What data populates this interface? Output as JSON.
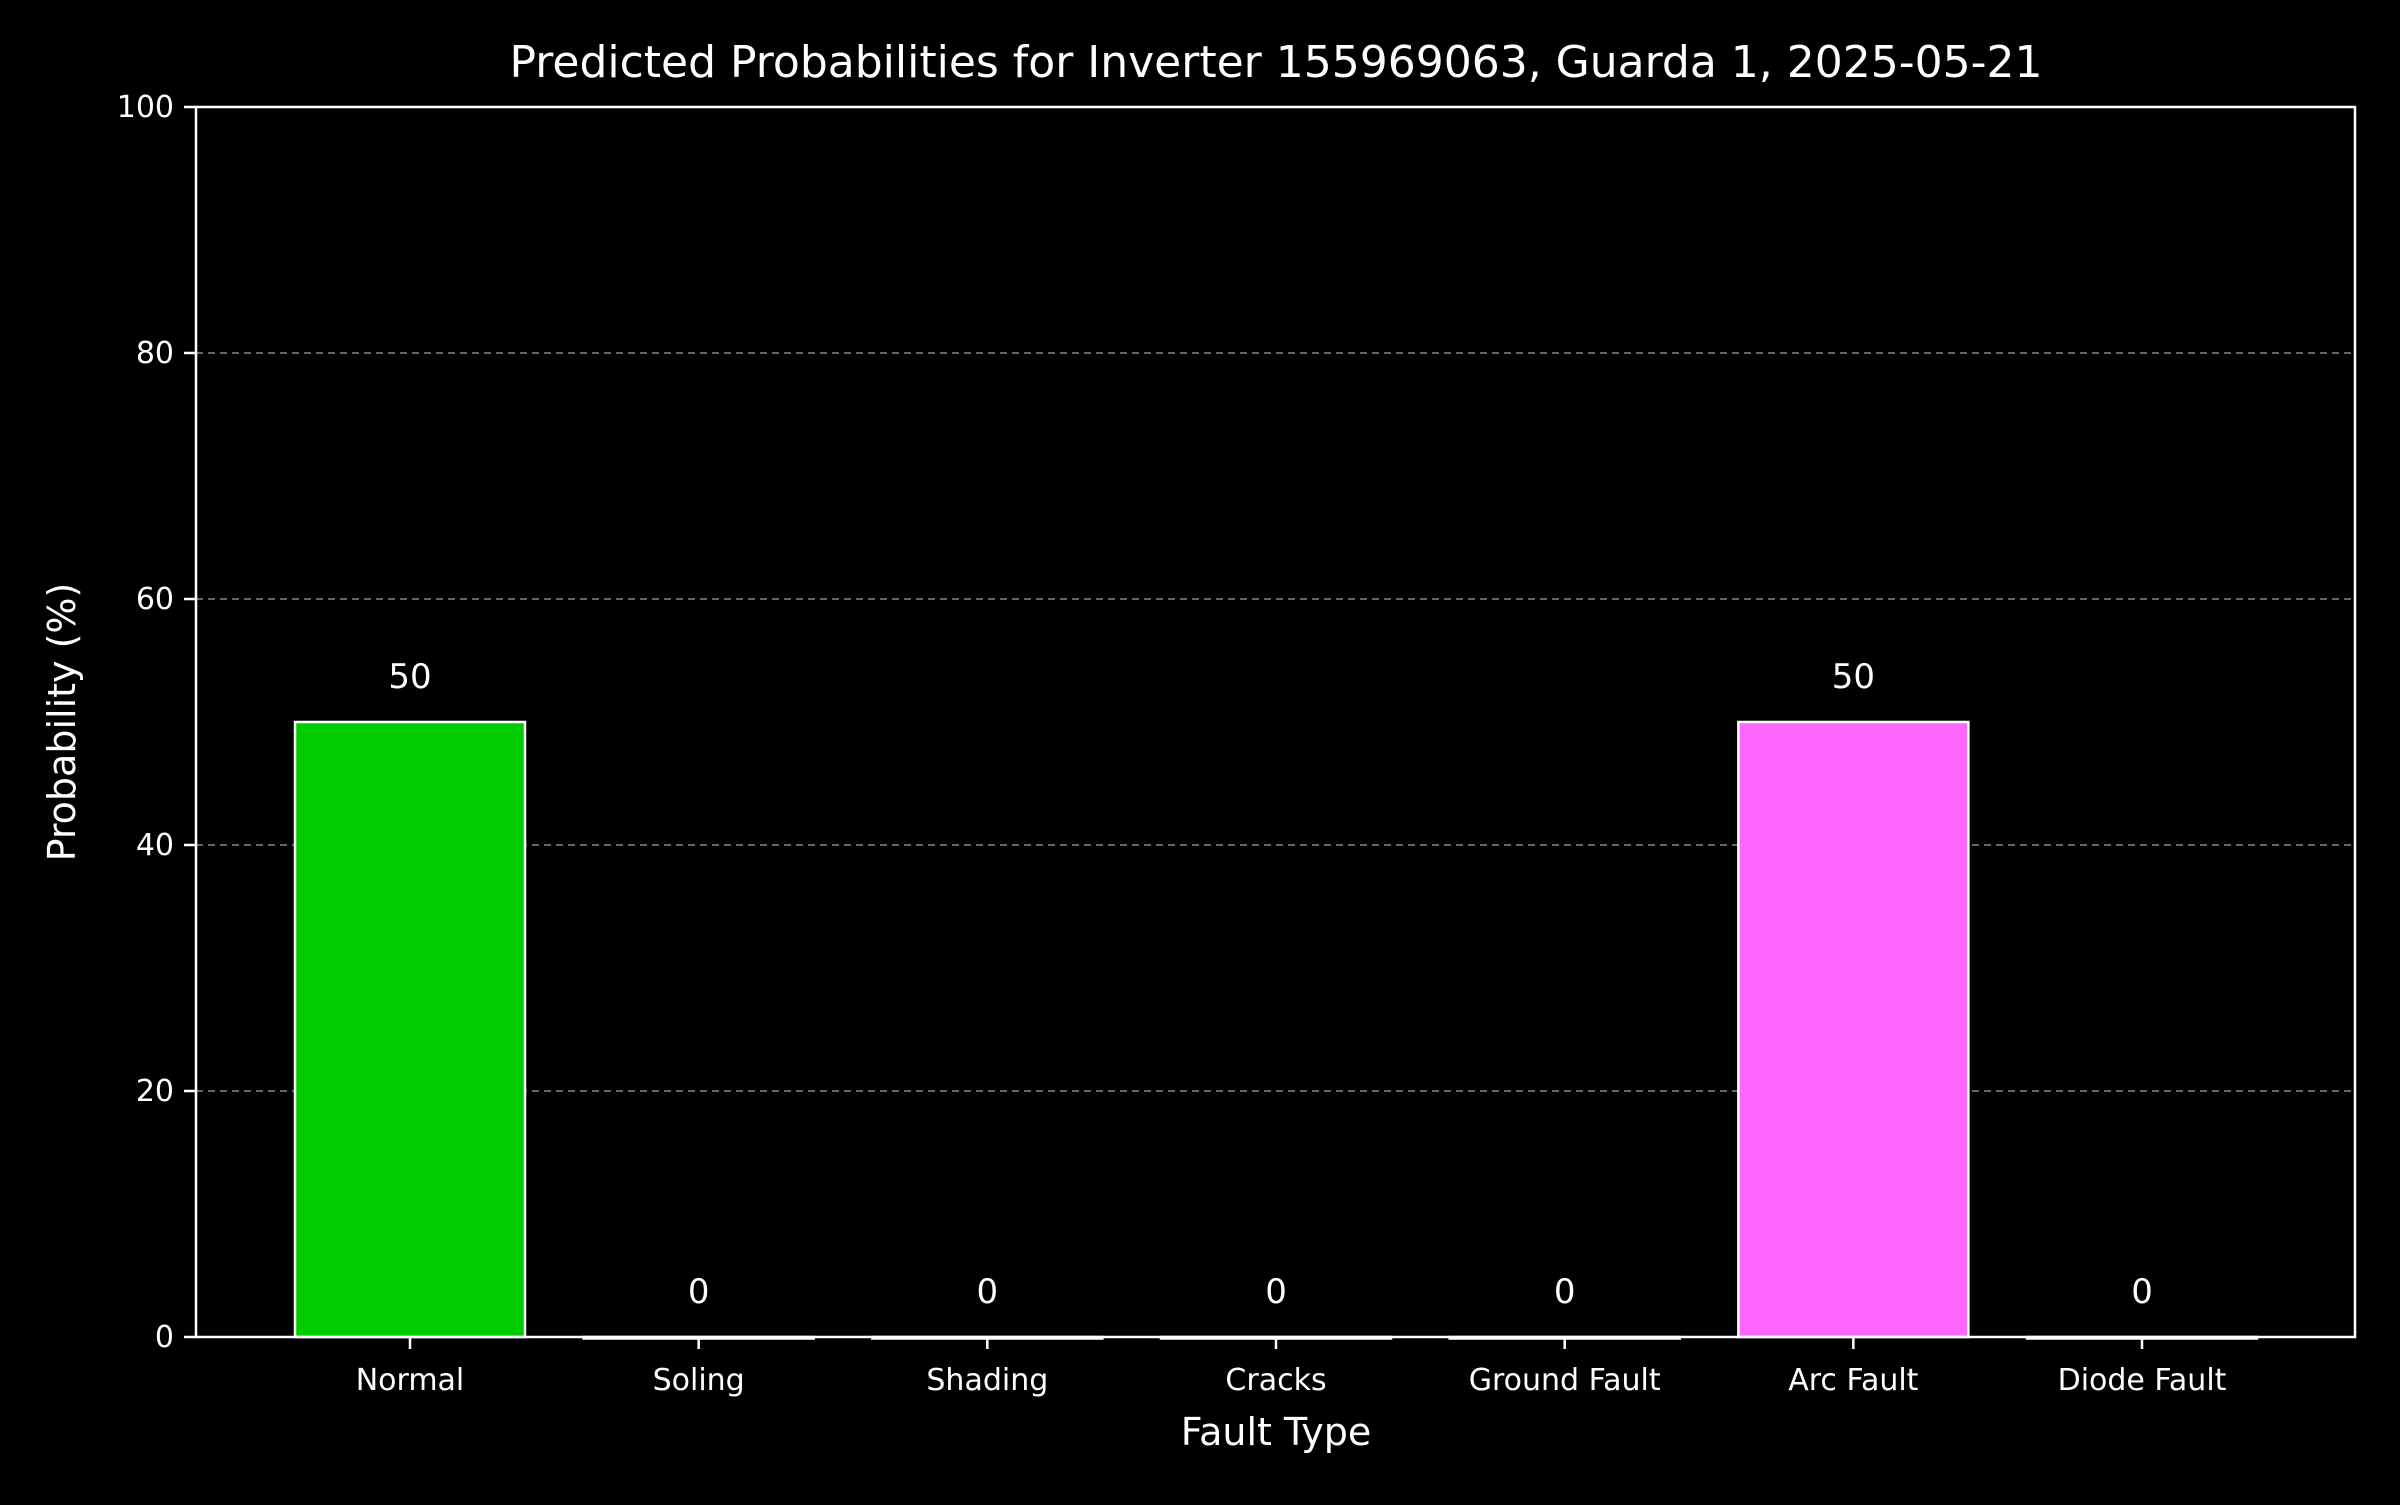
{
  "chart_data": {
    "type": "bar",
    "title": "Predicted Probabilities for Inverter 155969063, Guarda 1, 2025-05-21",
    "xlabel": "Fault Type",
    "ylabel": "Probability (%)",
    "categories": [
      "Normal",
      "Soling",
      "Shading",
      "Cracks",
      "Ground Fault",
      "Arc Fault",
      "Diode Fault"
    ],
    "values": [
      50,
      0,
      0,
      0,
      0,
      50,
      0
    ],
    "value_labels": [
      "50",
      "0",
      "0",
      "0",
      "0",
      "50",
      "0"
    ],
    "bar_colors": [
      "#00cc00",
      "#000000",
      "#000000",
      "#000000",
      "#000000",
      "#ff66ff",
      "#000000"
    ],
    "edge_color": "#ffffff",
    "background": "#000000",
    "ylim": [
      0,
      100
    ],
    "yticks": [
      0,
      20,
      40,
      60,
      80,
      100
    ],
    "ytick_labels": [
      "0",
      "20",
      "40",
      "60",
      "80",
      "100"
    ],
    "grid": "y-dashed",
    "legend": "none"
  }
}
